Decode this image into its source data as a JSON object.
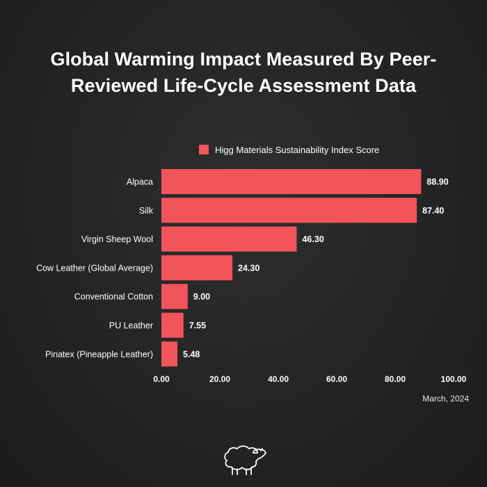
{
  "colors": {
    "background": "#242424",
    "bar": "#f2545b",
    "text": "#ffffff"
  },
  "title_line1": "Global Warming Impact Measured By Peer-",
  "title_line2": "Reviewed Life-Cycle Assessment Data",
  "date": "March, 2024",
  "logo_icon": "sheep-icon",
  "chart_data": {
    "type": "bar",
    "orientation": "horizontal",
    "categories": [
      "Alpaca",
      "Silk",
      "Virgin Sheep Wool",
      "Cow Leather (Global Average)",
      "Conventional Cotton",
      "PU Leather",
      "Pinatex (Pineapple Leather)"
    ],
    "series": [
      {
        "name": "Higg Materials Sustainability Index Score",
        "values": [
          88.9,
          87.4,
          46.3,
          24.3,
          9.0,
          7.55,
          5.48
        ],
        "labels": [
          "88.90",
          "87.40",
          "46.30",
          "24.30",
          "9.00",
          "7.55",
          "5.48"
        ]
      }
    ],
    "xlim": [
      0,
      100
    ],
    "xticks": [
      "0.00",
      "20.00",
      "40.00",
      "60.00",
      "80.00",
      "100.00"
    ],
    "legend_position": "top",
    "grid": false
  }
}
